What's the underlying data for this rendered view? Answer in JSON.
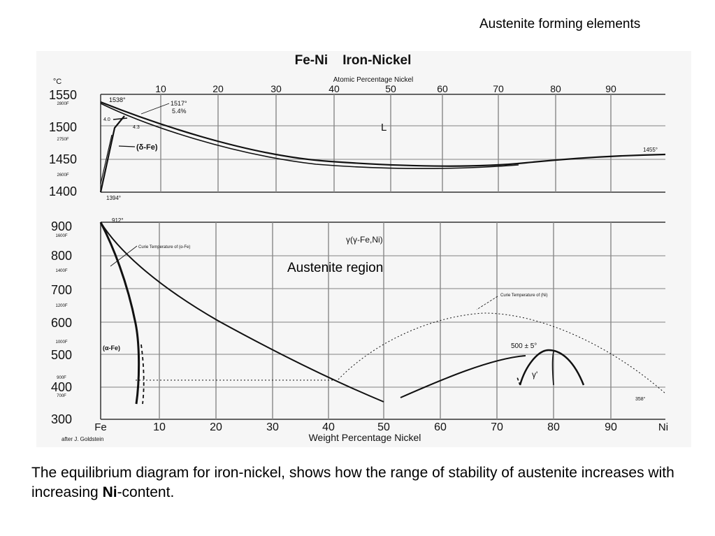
{
  "slide": {
    "header": "Austenite forming elements",
    "overlay_label": "Austenite region",
    "caption_part1": "The equilibrium diagram for iron-nickel,  shows how the range of stability of austenite increases with increasing ",
    "caption_bold": "Ni",
    "caption_part2": "-content."
  },
  "diagram": {
    "title": "Fe-Ni    Iron-Nickel",
    "top_axis_label": "Atomic Percentage Nickel",
    "bottom_axis_label": "Weight Percentage Nickel",
    "unit": "°C",
    "source": "after J. Goldstein",
    "x_left_label": "Fe",
    "x_right_label": "Ni",
    "atomic_ticks": [
      "10",
      "20",
      "30",
      "40",
      "50",
      "60",
      "70",
      "80",
      "90"
    ],
    "weight_ticks": [
      "10",
      "20",
      "30",
      "40",
      "50",
      "60",
      "70",
      "80",
      "90"
    ],
    "upper_y_ticks": [
      {
        "c": "1550",
        "f": "2800F"
      },
      {
        "c": "1500",
        "f": "2750F"
      },
      {
        "c": "1450",
        "f": "2600F"
      },
      {
        "c": "1400",
        "f": ""
      }
    ],
    "lower_y_ticks": [
      {
        "c": "900",
        "f": "1600F"
      },
      {
        "c": "800",
        "f": "1400F"
      },
      {
        "c": "700",
        "f": "1200F"
      },
      {
        "c": "600",
        "f": "1000F"
      },
      {
        "c": "500",
        "f": "900F"
      },
      {
        "c": "400",
        "f": "700F"
      },
      {
        "c": "300",
        "f": ""
      }
    ],
    "annotations": {
      "fe_melt": "1538°",
      "peritectic": "1517°",
      "peritectic_pct": "5.4%",
      "left_40": "4.0",
      "left_43": "4.3",
      "delta_fe": "(δ-Fe)",
      "liquid": "L",
      "ni_melt": "1455°",
      "delta_gamma": "1394°",
      "alpha_gamma": "912°",
      "gamma_field": "γ(γ-Fe,Ni)",
      "curie_fe": "Curie Temperature of (α-Fe)",
      "curie_ni": "Curie Temperature of (Ni)",
      "ordering": "500 ± 5°",
      "gamma_prime": "γ'",
      "alpha_fe": "(α-Fe)",
      "ni_curie_value": "358°"
    }
  }
}
